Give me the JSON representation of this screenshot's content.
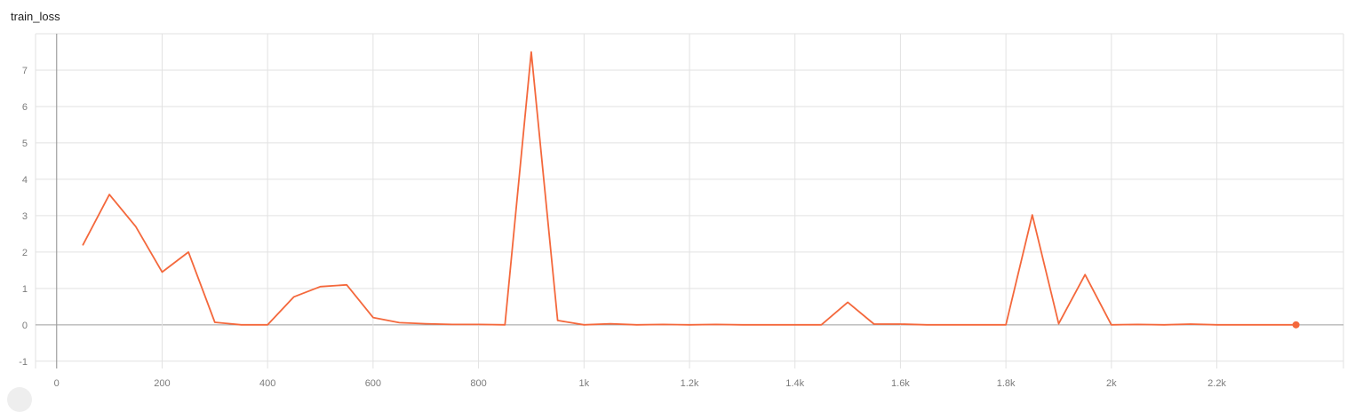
{
  "chart_data": {
    "type": "line",
    "title": "train_loss",
    "xlabel": "",
    "ylabel": "",
    "xlim": [
      -40,
      2440
    ],
    "ylim": [
      -1.2,
      8
    ],
    "grid": true,
    "x_ticks": [
      {
        "value": 0,
        "label": "0"
      },
      {
        "value": 200,
        "label": "200"
      },
      {
        "value": 400,
        "label": "400"
      },
      {
        "value": 600,
        "label": "600"
      },
      {
        "value": 800,
        "label": "800"
      },
      {
        "value": 1000,
        "label": "1k"
      },
      {
        "value": 1200,
        "label": "1.2k"
      },
      {
        "value": 1400,
        "label": "1.4k"
      },
      {
        "value": 1600,
        "label": "1.6k"
      },
      {
        "value": 1800,
        "label": "1.8k"
      },
      {
        "value": 2000,
        "label": "2k"
      },
      {
        "value": 2200,
        "label": "2.2k"
      }
    ],
    "y_ticks": [
      {
        "value": -1,
        "label": "-1"
      },
      {
        "value": 0,
        "label": "0"
      },
      {
        "value": 1,
        "label": "1"
      },
      {
        "value": 2,
        "label": "2"
      },
      {
        "value": 3,
        "label": "3"
      },
      {
        "value": 4,
        "label": "4"
      },
      {
        "value": 5,
        "label": "5"
      },
      {
        "value": 6,
        "label": "6"
      },
      {
        "value": 7,
        "label": "7"
      }
    ],
    "series": [
      {
        "color": "#f4683c",
        "x": [
          50,
          100,
          150,
          200,
          250,
          300,
          350,
          400,
          450,
          500,
          550,
          600,
          650,
          700,
          750,
          800,
          850,
          900,
          950,
          1000,
          1050,
          1100,
          1150,
          1200,
          1250,
          1300,
          1350,
          1400,
          1450,
          1500,
          1550,
          1600,
          1650,
          1700,
          1750,
          1800,
          1850,
          1900,
          1950,
          2000,
          2050,
          2100,
          2150,
          2200,
          2250,
          2300,
          2350
        ],
        "y": [
          2.2,
          3.58,
          2.7,
          1.45,
          2.0,
          0.07,
          0.0,
          0.0,
          0.77,
          1.05,
          1.1,
          0.2,
          0.06,
          0.03,
          0.01,
          0.01,
          0.0,
          7.5,
          0.12,
          0.0,
          0.03,
          0.0,
          0.01,
          0.0,
          0.01,
          0.0,
          0.0,
          0.0,
          0.0,
          0.62,
          0.02,
          0.02,
          0.0,
          0.0,
          0.0,
          0.0,
          3.02,
          0.03,
          1.38,
          0.0,
          0.01,
          0.0,
          0.02,
          0.0,
          0.0,
          0.0,
          0.0
        ]
      }
    ]
  }
}
